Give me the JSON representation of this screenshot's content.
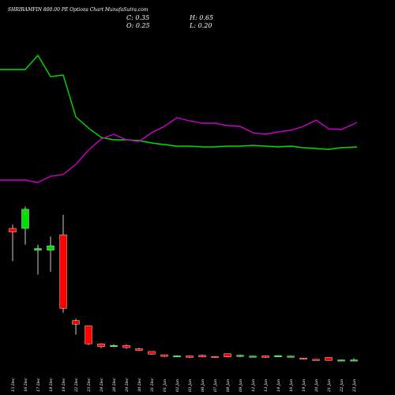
{
  "chart_data": {
    "type": "candlestick",
    "title": "SHRIRAMFIN 800.00 PE Options Chart MunafaSutra.com",
    "ohlc_readout": {
      "close_label": "C:",
      "close": "0.35",
      "open_label": "O:",
      "open": "0.25",
      "high_label": "H:",
      "high": "0.65",
      "low_label": "L:",
      "low": "0.20"
    },
    "dates": [
      "15 Dec",
      "16 Dec",
      "17 Dec",
      "18 Dec",
      "19 Dec",
      "22 Dec",
      "23 Dec",
      "24 Dec",
      "26 Dec",
      "29 Dec",
      "30 Dec",
      "31 Dec",
      "01 Jan",
      "02 Jan",
      "05 Jan",
      "06 Jan",
      "07 Jan",
      "08 Jan",
      "09 Jan",
      "12 Jan",
      "13 Jan",
      "14 Jan",
      "16 Jan",
      "19 Jan",
      "20 Jan",
      "21 Jan",
      "22 Jan",
      "23 Jan"
    ],
    "candles": [
      {
        "o": 24.5,
        "h": 25.2,
        "l": 18.5,
        "c": 23.8
      },
      {
        "o": 24.5,
        "h": 28.5,
        "l": 21.5,
        "c": 28.0
      },
      {
        "o": 20.5,
        "h": 21.5,
        "l": 16.0,
        "c": 20.8
      },
      {
        "o": 20.5,
        "h": 23.0,
        "l": 16.5,
        "c": 21.3
      },
      {
        "o": 23.3,
        "h": 27.0,
        "l": 9.0,
        "c": 9.8
      },
      {
        "o": 7.6,
        "h": 7.9,
        "l": 5.0,
        "c": 6.9
      },
      {
        "o": 6.6,
        "h": 6.6,
        "l": 3.1,
        "c": 3.3
      },
      {
        "o": 3.3,
        "h": 3.4,
        "l": 2.5,
        "c": 2.8
      },
      {
        "o": 2.9,
        "h": 3.2,
        "l": 2.7,
        "c": 3.0
      },
      {
        "o": 3.0,
        "h": 3.2,
        "l": 2.4,
        "c": 2.6
      },
      {
        "o": 2.4,
        "h": 2.6,
        "l": 2.0,
        "c": 2.1
      },
      {
        "o": 1.9,
        "h": 1.9,
        "l": 1.3,
        "c": 1.4
      },
      {
        "o": 1.3,
        "h": 1.3,
        "l": 0.9,
        "c": 1.0
      },
      {
        "o": 1.0,
        "h": 1.2,
        "l": 0.9,
        "c": 1.1
      },
      {
        "o": 1.1,
        "h": 1.1,
        "l": 0.7,
        "c": 0.8
      },
      {
        "o": 1.2,
        "h": 1.3,
        "l": 0.8,
        "c": 0.9
      },
      {
        "o": 1.0,
        "h": 1.0,
        "l": 0.8,
        "c": 0.85
      },
      {
        "o": 1.5,
        "h": 1.5,
        "l": 0.8,
        "c": 0.9
      },
      {
        "o": 1.0,
        "h": 1.3,
        "l": 0.9,
        "c": 1.2
      },
      {
        "o": 1.0,
        "h": 1.1,
        "l": 0.8,
        "c": 1.05
      },
      {
        "o": 1.1,
        "h": 1.1,
        "l": 0.7,
        "c": 0.8
      },
      {
        "o": 0.9,
        "h": 1.2,
        "l": 0.9,
        "c": 1.15
      },
      {
        "o": 0.9,
        "h": 1.1,
        "l": 0.8,
        "c": 1.05
      },
      {
        "o": 0.7,
        "h": 0.7,
        "l": 0.5,
        "c": 0.55
      },
      {
        "o": 0.45,
        "h": 0.5,
        "l": 0.35,
        "c": 0.4
      },
      {
        "o": 0.8,
        "h": 0.8,
        "l": 0.2,
        "c": 0.25
      },
      {
        "o": 0.3,
        "h": 0.4,
        "l": 0.2,
        "c": 0.35
      },
      {
        "o": 0.25,
        "h": 0.65,
        "l": 0.2,
        "c": 0.35
      }
    ],
    "price_axis": {
      "min": 0,
      "max": 29
    },
    "series": [
      {
        "color": "#00e000",
        "values": [
          88,
          88,
          70,
          97,
          95,
          148,
          162,
          174,
          177,
          177,
          178,
          181,
          183,
          185,
          185,
          186,
          186,
          185,
          185,
          184,
          185,
          186,
          185,
          187,
          188,
          189,
          187,
          186
        ]
      },
      {
        "color": "#cc00cc",
        "values": [
          228,
          228,
          231,
          223,
          221,
          208,
          190,
          176,
          170,
          177,
          179,
          168,
          160,
          149,
          153,
          156,
          156,
          159,
          160,
          168,
          170,
          167,
          165,
          160,
          152,
          163,
          164,
          155
        ]
      }
    ],
    "indicator_axis": {
      "note": "pixel-scale overlay",
      "min": 0,
      "max": 500
    },
    "colors": {
      "background": "#000000",
      "up": "#00e000",
      "down": "#ff0000",
      "text": "#ffffff"
    }
  }
}
